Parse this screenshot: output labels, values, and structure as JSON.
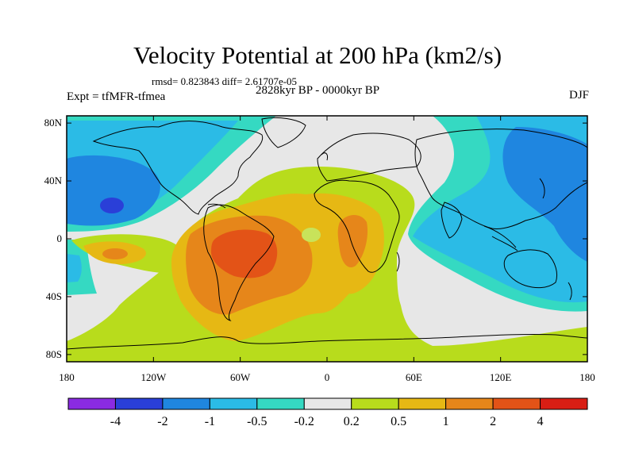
{
  "title": "Velocity Potential at 200 hPa (km2/s)",
  "stats": "rmsd= 0.823843 diff= 2.61707e-05",
  "period": "2828kyr BP - 0000kyr BP",
  "experiment": "Expt = tfMFR-tfmea",
  "season": "DJF",
  "y_axis": {
    "ticks": [
      {
        "label": "80N",
        "lat": 80
      },
      {
        "label": "40N",
        "lat": 40
      },
      {
        "label": "0",
        "lat": 0
      },
      {
        "label": "40S",
        "lat": -40
      },
      {
        "label": "80S",
        "lat": -80
      }
    ]
  },
  "x_axis": {
    "ticks": [
      {
        "label": "180",
        "lon": -180
      },
      {
        "label": "120W",
        "lon": -120
      },
      {
        "label": "60W",
        "lon": -60
      },
      {
        "label": "0",
        "lon": 0
      },
      {
        "label": "60E",
        "lon": 60
      },
      {
        "label": "120E",
        "lon": 120
      },
      {
        "label": "180",
        "lon": 180
      }
    ]
  },
  "colorbar": {
    "labels": [
      "-4",
      "-2",
      "-1",
      "-0.5",
      "-0.2",
      "0.2",
      "0.5",
      "1",
      "2",
      "4"
    ],
    "colors": [
      "#8a2be2",
      "#2a3fd8",
      "#1f86e0",
      "#2bbbe6",
      "#35d9c2",
      "#e7e7e7",
      "#b8dc1c",
      "#e6b814",
      "#e6861a",
      "#e35317",
      "#d91e14"
    ]
  }
}
